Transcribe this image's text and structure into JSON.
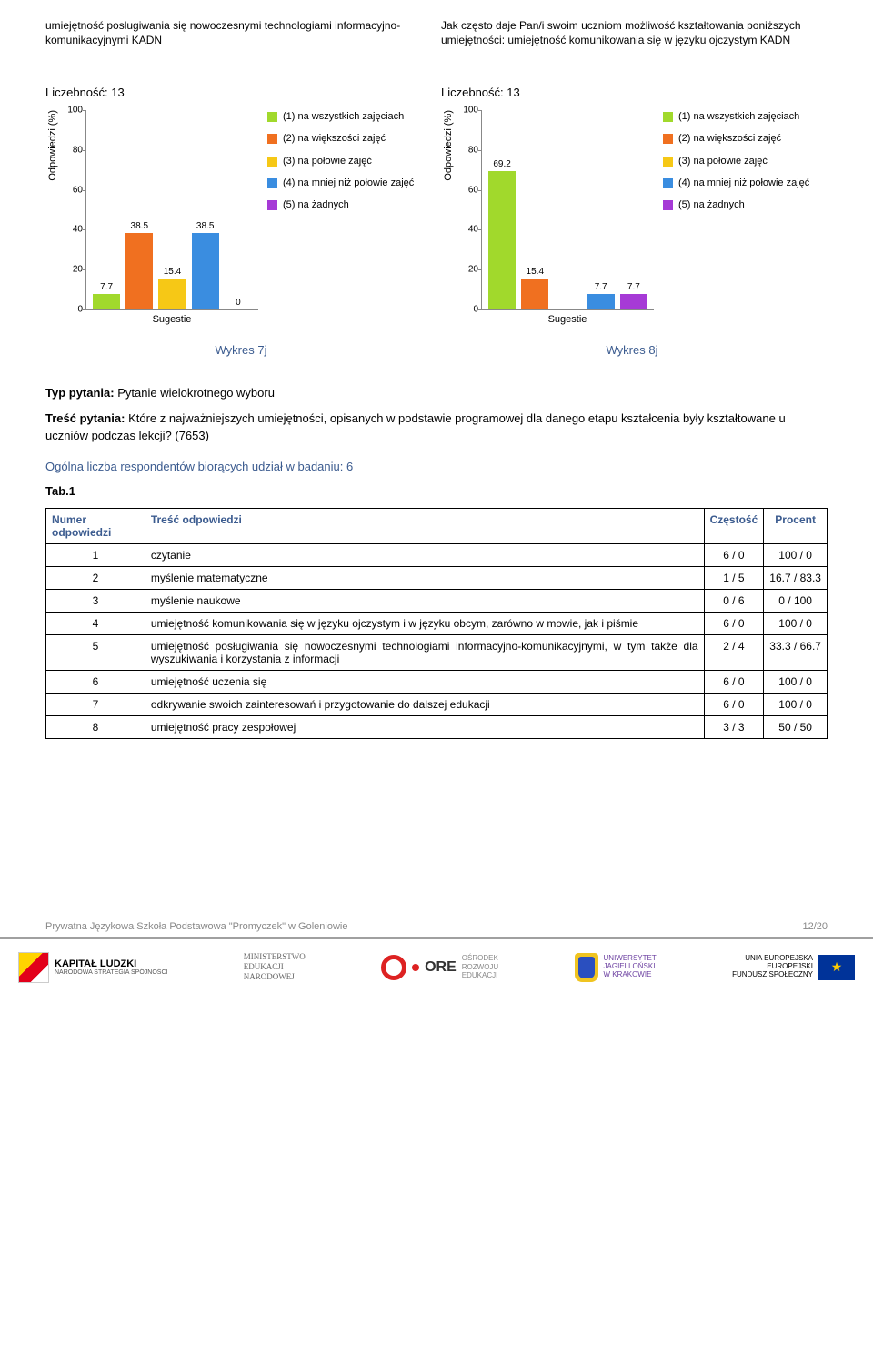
{
  "chart_colors": {
    "c1": "#a1d92c",
    "c2": "#f07020",
    "c3": "#f6c816",
    "c4": "#3a8de0",
    "c5": "#a63ad6"
  },
  "legend_items": [
    {
      "key": "c1",
      "label": "(1) na wszystkich zajęciach"
    },
    {
      "key": "c2",
      "label": "(2) na większości zajęć"
    },
    {
      "key": "c3",
      "label": "(3) na połowie zajęć"
    },
    {
      "key": "c4",
      "label": "(4) na mniej niż połowie zajęć"
    },
    {
      "key": "c5",
      "label": "(5) na żadnych"
    }
  ],
  "chart_left": {
    "heading": "umiejętność posługiwania się nowoczesnymi technologiami informacyjno-komunikacyjnymi KADN",
    "sub": "Liczebność: 13",
    "y_label": "Odpowiedzi (%)",
    "x_label": "Sugestie",
    "ylim": [
      0,
      100
    ],
    "ytick_step": 20,
    "bars": [
      {
        "label": "7.7",
        "value": 7.7,
        "color": "c1"
      },
      {
        "label": "38.5",
        "value": 38.5,
        "color": "c2"
      },
      {
        "label": "15.4",
        "value": 15.4,
        "color": "c3"
      },
      {
        "label": "38.5",
        "value": 38.5,
        "color": "c4"
      },
      {
        "label": "0",
        "value": 0,
        "color": "c5"
      }
    ],
    "caption": "Wykres 7j"
  },
  "chart_right": {
    "heading": "Jak często daje Pan/i swoim uczniom możliwość kształtowania poniższych umiejętności: umiejętność komunikowania się w języku ojczystym KADN",
    "sub": "Liczebność: 13",
    "y_label": "Odpowiedzi (%)",
    "x_label": "Sugestie",
    "ylim": [
      0,
      100
    ],
    "ytick_step": 20,
    "bars": [
      {
        "label": "69.2",
        "value": 69.2,
        "color": "c1"
      },
      {
        "label": "15.4",
        "value": 15.4,
        "color": "c2"
      },
      {
        "label": "",
        "value": 0,
        "color": "c3"
      },
      {
        "label": "7.7",
        "value": 7.7,
        "color": "c4"
      },
      {
        "label": "7.7",
        "value": 7.7,
        "color": "c5"
      }
    ],
    "caption": "Wykres 8j"
  },
  "question": {
    "type_label": "Typ pytania:",
    "type_value": "Pytanie wielokrotnego wyboru",
    "content_label": "Treść pytania:",
    "content_value": "Które z najważniejszych umiejętności, opisanych w podstawie programowej dla danego etapu kształcenia były kształtowane u uczniów podczas lekcji? (7653)",
    "respondents": "Ogólna liczba respondentów biorących udział w badaniu: 6",
    "tab_ref": "Tab.1"
  },
  "table": {
    "headers": [
      "Numer odpowiedzi",
      "Treść odpowiedzi",
      "Częstość",
      "Procent"
    ],
    "rows": [
      {
        "n": "1",
        "t": "czytanie",
        "f": "6 / 0",
        "p": "100 / 0"
      },
      {
        "n": "2",
        "t": "myślenie matematyczne",
        "f": "1 / 5",
        "p": "16.7 / 83.3"
      },
      {
        "n": "3",
        "t": "myślenie naukowe",
        "f": "0 / 6",
        "p": "0 / 100"
      },
      {
        "n": "4",
        "t": "umiejętność komunikowania się w języku ojczystym i w języku obcym, zarówno w mowie, jak i piśmie",
        "f": "6 / 0",
        "p": "100 / 0"
      },
      {
        "n": "5",
        "t": "umiejętność posługiwania się nowoczesnymi technologiami informacyjno-komunikacyjnymi, w tym także dla wyszukiwania i korzystania z informacji",
        "f": "2 / 4",
        "p": "33.3 / 66.7"
      },
      {
        "n": "6",
        "t": "umiejętność uczenia się",
        "f": "6 / 0",
        "p": "100 / 0"
      },
      {
        "n": "7",
        "t": "odkrywanie swoich zainteresowań i przygotowanie do dalszej edukacji",
        "f": "6 / 0",
        "p": "100 / 0"
      },
      {
        "n": "8",
        "t": "umiejętność pracy zespołowej",
        "f": "3 / 3",
        "p": "50 / 50"
      }
    ]
  },
  "footer": {
    "left": "Prywatna Językowa Szkoła Podstawowa \"Promyczek\" w Goleniowie",
    "right": "12/20"
  },
  "logos": {
    "kapital_title": "KAPITAŁ LUDZKI",
    "kapital_sub": "NARODOWA STRATEGIA SPÓJNOŚCI",
    "min": "MINISTERSTWO\nEDUKACJI\nNARODOWEJ",
    "ore_big": "ORE",
    "ore_small": "OŚRODEK\nROZWOJU\nEDUKACJI",
    "uj": "UNIWERSYTET\nJAGIELLOŃSKI\nW KRAKOWIE",
    "eu": "UNIA EUROPEJSKA\nEUROPEJSKI\nFUNDUSZ SPOŁECZNY"
  }
}
